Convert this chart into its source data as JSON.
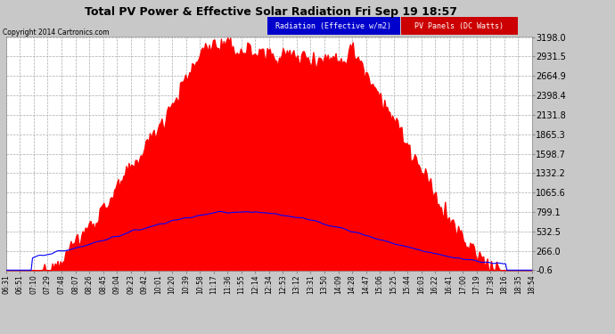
{
  "title": "Total PV Power & Effective Solar Radiation Fri Sep 19 18:57",
  "copyright": "Copyright 2014 Cartronics.com",
  "legend_radiation": "Radiation (Effective w/m2)",
  "legend_pv": "PV Panels (DC Watts)",
  "yticks": [
    3198.0,
    2931.5,
    2664.9,
    2398.4,
    2131.8,
    1865.3,
    1598.7,
    1332.2,
    1065.6,
    799.1,
    532.5,
    266.0,
    -0.6
  ],
  "ymin": -0.6,
  "ymax": 3198.0,
  "bg_color": "#c8c8c8",
  "plot_bg_color": "#ffffff",
  "grid_color": "#aaaaaa",
  "radiation_color": "#0000ff",
  "pv_fill_color": "#ff0000",
  "legend_radiation_bg": "#0000cc",
  "legend_pv_bg": "#cc0000",
  "xtick_labels": [
    "06:31",
    "06:51",
    "07:10",
    "07:29",
    "07:48",
    "08:07",
    "08:26",
    "08:45",
    "09:04",
    "09:23",
    "09:42",
    "10:01",
    "10:20",
    "10:39",
    "10:58",
    "11:17",
    "11:36",
    "11:55",
    "12:14",
    "12:34",
    "12:53",
    "13:12",
    "13:31",
    "13:50",
    "14:09",
    "14:28",
    "14:47",
    "15:06",
    "15:25",
    "15:44",
    "16:03",
    "16:22",
    "16:41",
    "17:00",
    "17:19",
    "17:38",
    "18:16",
    "18:35",
    "18:54"
  ]
}
